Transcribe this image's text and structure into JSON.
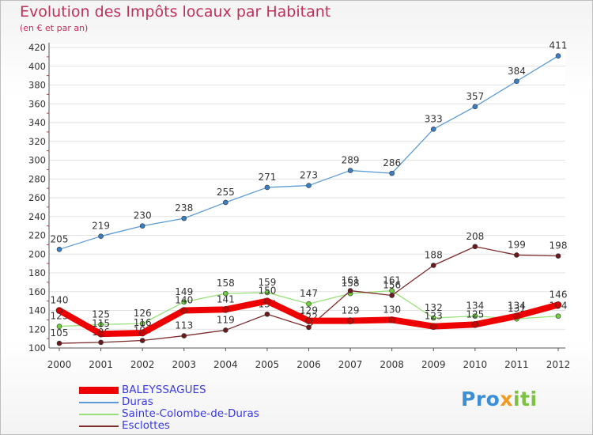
{
  "chart_data": {
    "type": "line",
    "title": "Evolution des Impôts locaux par Habitant",
    "subtitle": "(en € et par an)",
    "xlabel": "",
    "ylabel": "",
    "ylim": [
      100,
      420
    ],
    "y_ticks": [
      100,
      120,
      140,
      160,
      180,
      200,
      220,
      240,
      260,
      280,
      300,
      320,
      340,
      360,
      380,
      400,
      420
    ],
    "categories": [
      "2000",
      "2001",
      "2002",
      "2003",
      "2004",
      "2005",
      "2006",
      "2007",
      "2008",
      "2009",
      "2010",
      "2011",
      "2012"
    ],
    "series": [
      {
        "name": "Duras",
        "color": "#5b9bd5",
        "dot": "#3a7fc4",
        "width": 1.3,
        "values": [
          205,
          219,
          230,
          238,
          255,
          271,
          273,
          289,
          286,
          333,
          357,
          384,
          411
        ]
      },
      {
        "name": "Sainte-Colombe-de-Duras",
        "color": "#99e07a",
        "dot": "#6fcf3b",
        "width": 1.3,
        "values": [
          123,
          125,
          126,
          149,
          158,
          159,
          147,
          158,
          161,
          132,
          134,
          131,
          134
        ]
      },
      {
        "name": "Esclottes",
        "color": "#7d2c2c",
        "dot": "#6a1a1a",
        "width": 1.3,
        "values": [
          105,
          106,
          108,
          113,
          119,
          136,
          122,
          161,
          156,
          188,
          208,
          199,
          198
        ]
      },
      {
        "name": "BALEYSSAGUES",
        "color": "#ee0000",
        "dot": "#cc0000",
        "width": 8,
        "values": [
          140,
          115,
          116,
          140,
          141,
          150,
          129,
          129,
          130,
          123,
          125,
          134,
          146
        ]
      }
    ],
    "legend": [
      "BALEYSSAGUES",
      "Duras",
      "Sainte-Colombe-de-Duras",
      "Esclottes"
    ]
  },
  "legend_colors": {
    "BALEYSSAGUES": "#ee0000",
    "Duras": "#5b9bd5",
    "Sainte-Colombe-de-Duras": "#99e07a",
    "Esclottes": "#7d2c2c"
  },
  "logo": {
    "part1": "Pro",
    "part2": "x",
    "part3": "iti"
  }
}
